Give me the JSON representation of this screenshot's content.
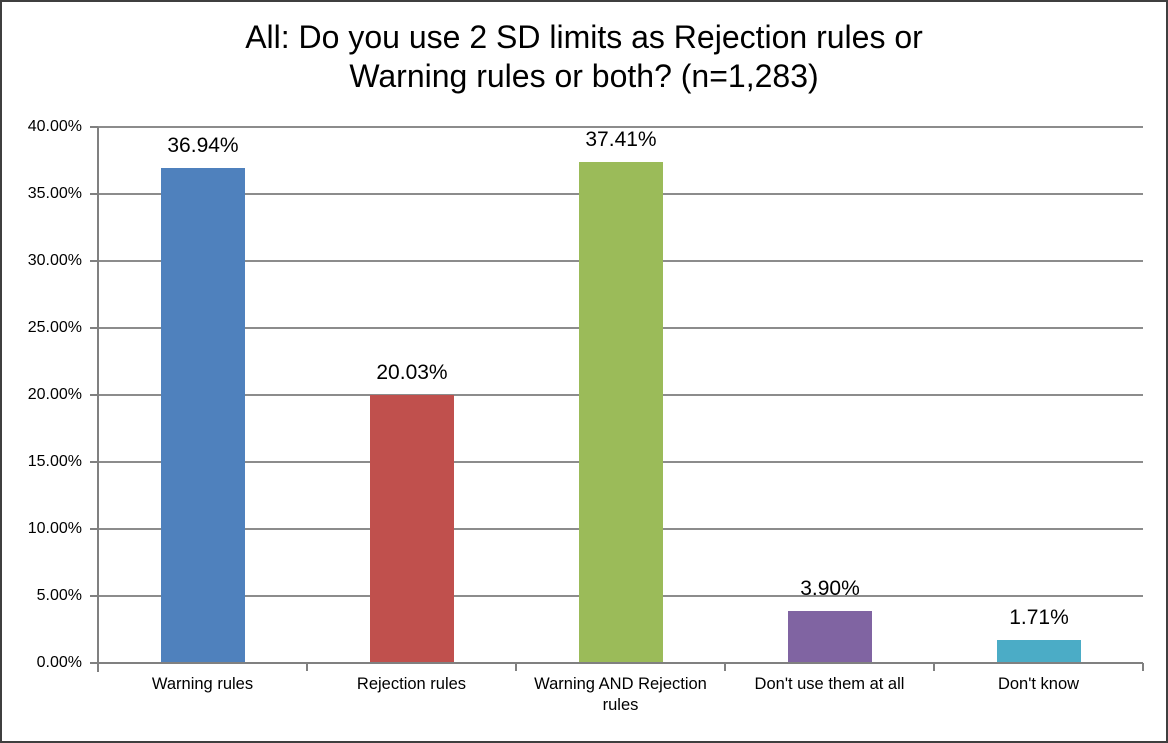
{
  "chart_data": {
    "type": "bar",
    "title": "All: Do you use 2 SD limits as Rejection rules or Warning rules or both? (n=1,283)",
    "title_lines": [
      "All: Do you use 2 SD limits as Rejection rules or",
      "Warning rules or both? (n=1,283)"
    ],
    "n": "1,283",
    "categories": [
      "Warning rules",
      "Rejection rules",
      "Warning AND Rejection rules",
      "Don't use them at all",
      "Don't know"
    ],
    "values": [
      36.94,
      20.03,
      37.41,
      3.9,
      1.71
    ],
    "value_labels": [
      "36.94%",
      "20.03%",
      "37.41%",
      "3.90%",
      "1.71%"
    ],
    "bar_colors": [
      "#4F81BD",
      "#C0504D",
      "#9BBB59",
      "#8064A2",
      "#4BACC6"
    ],
    "xlabel": "",
    "ylabel": "",
    "ylim": [
      0,
      40
    ],
    "ytick_step": 5,
    "ytick_labels": [
      "0.00%",
      "5.00%",
      "10.00%",
      "15.00%",
      "20.00%",
      "25.00%",
      "30.00%",
      "35.00%",
      "40.00%"
    ],
    "grid": true,
    "legend": "none",
    "colors": {
      "gridline": "#8C8C8C",
      "axis": "#808080",
      "text": "#000000",
      "background": "#FFFFFF",
      "border": "#3F3F3F"
    }
  }
}
